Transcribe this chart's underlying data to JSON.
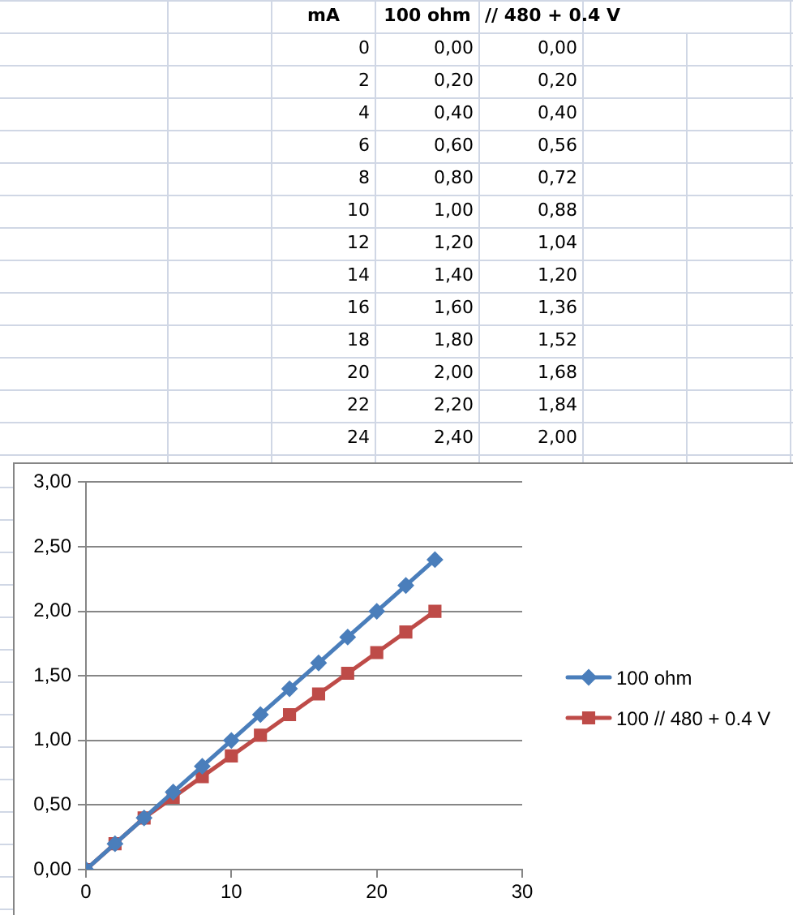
{
  "chart_data": {
    "type": "line",
    "x": [
      0,
      2,
      4,
      6,
      8,
      10,
      12,
      14,
      16,
      18,
      20,
      22,
      24
    ],
    "series": [
      {
        "name": "100 ohm",
        "color": "#4a7ebb",
        "marker": "diamond",
        "values": [
          0,
          0.2,
          0.4,
          0.6,
          0.8,
          1.0,
          1.2,
          1.4,
          1.6,
          1.8,
          2.0,
          2.2,
          2.4
        ]
      },
      {
        "name": "100 // 480 + 0.4 V",
        "color": "#be4b48",
        "marker": "square",
        "values": [
          0,
          0.2,
          0.4,
          0.56,
          0.72,
          0.88,
          1.04,
          1.2,
          1.36,
          1.52,
          1.68,
          1.84,
          2.0
        ]
      }
    ],
    "xlim": [
      0,
      30
    ],
    "xticks": [
      0,
      10,
      20,
      30
    ],
    "ylim": [
      0,
      3
    ],
    "yticks": [
      {
        "value": 0,
        "label": "0,00"
      },
      {
        "value": 0.5,
        "label": "0,50"
      },
      {
        "value": 1,
        "label": "1,00"
      },
      {
        "value": 1.5,
        "label": "1,50"
      },
      {
        "value": 2,
        "label": "2,00"
      },
      {
        "value": 2.5,
        "label": "2,50"
      },
      {
        "value": 3,
        "label": "3,00"
      }
    ],
    "grid": "y",
    "legend": "right",
    "annotations": [
      "mA",
      "100 ohm",
      "// 480 + 0.4 V",
      "0",
      "0,00",
      "0,00",
      "2",
      "0,20",
      "0,20",
      "4",
      "0,40",
      "0,40",
      "6",
      "0,60",
      "0,56",
      "8",
      "0,80",
      "0,72",
      "10",
      "1,00",
      "0,88",
      "12",
      "1,20",
      "1,04",
      "14",
      "1,40",
      "1,20",
      "16",
      "1,60",
      "1,36",
      "18",
      "1,80",
      "1,52",
      "20",
      "2,00",
      "1,68",
      "22",
      "2,20",
      "1,84",
      "24",
      "2,40",
      "2,00"
    ]
  }
}
